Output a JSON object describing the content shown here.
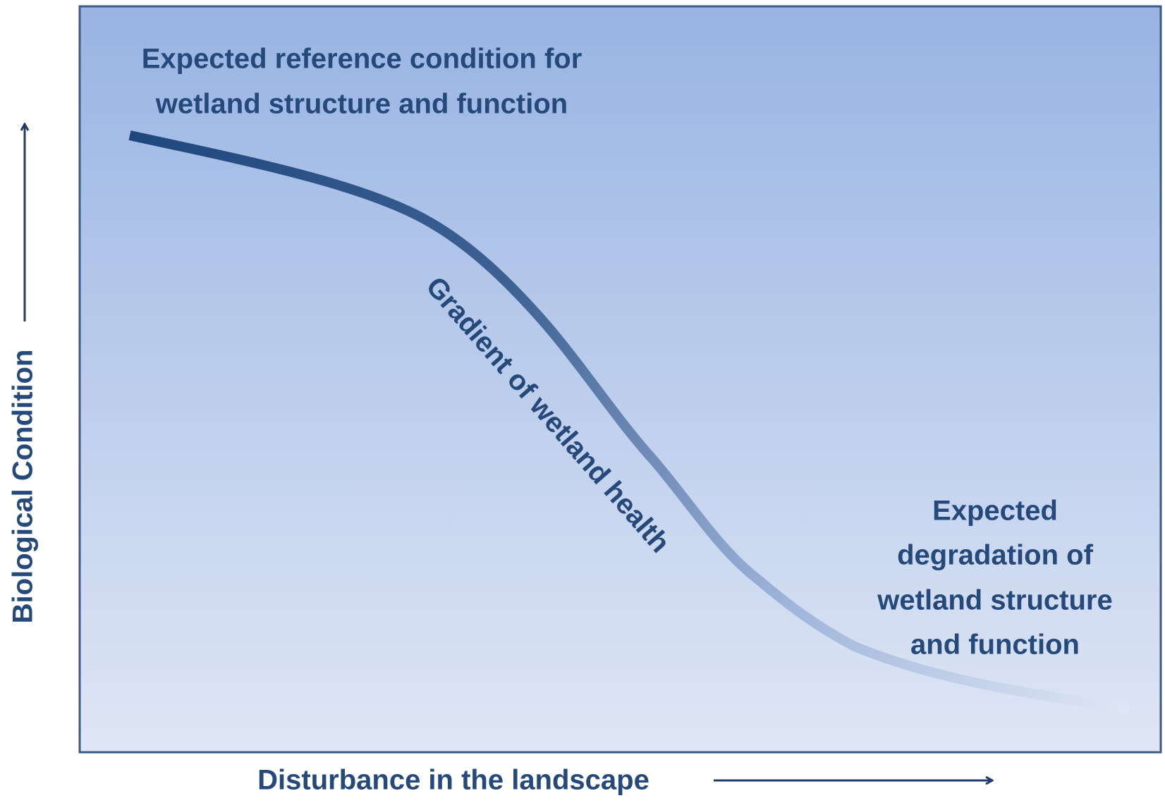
{
  "reference_label": {
    "lines": [
      "Expected reference condition for",
      "wetland structure and function"
    ]
  },
  "curve_label": "Gradient of wetland health",
  "degradation_label": {
    "lines": [
      "Expected",
      "degradation of",
      "wetland structure",
      "and function"
    ]
  },
  "y_axis_label": "Biological Condition",
  "x_axis_label": "Disturbance in the landscape"
}
